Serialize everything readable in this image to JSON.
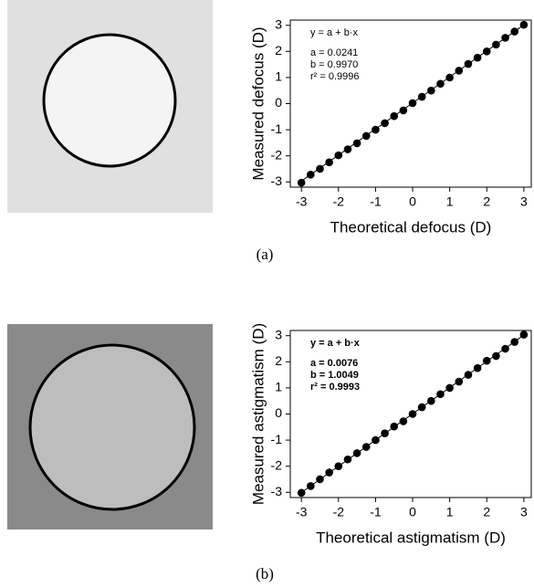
{
  "chart_data": [
    {
      "type": "scatter",
      "caption": "(a)",
      "xlabel": "Theoretical defocus (D)",
      "ylabel": "Measured defocus (D)",
      "x": [
        -3,
        -2.75,
        -2.5,
        -2.25,
        -2,
        -1.75,
        -1.5,
        -1.25,
        -1,
        -0.75,
        -0.5,
        -0.25,
        0,
        0.25,
        0.5,
        0.75,
        1,
        1.25,
        1.5,
        1.75,
        2,
        2.25,
        2.5,
        2.75,
        3
      ],
      "values": [
        -3.03,
        -2.72,
        -2.5,
        -2.25,
        -1.98,
        -1.75,
        -1.52,
        -1.24,
        -1,
        -0.75,
        -0.48,
        -0.26,
        0.02,
        0.26,
        0.5,
        0.76,
        1,
        1.26,
        1.52,
        1.76,
        2,
        2.26,
        2.52,
        2.76,
        3.02
      ],
      "color": "#000000",
      "xlim": [
        -3.3,
        3.2
      ],
      "ylim": [
        -3.2,
        3.2
      ],
      "xticks": [
        -3,
        -2,
        -1,
        0,
        1,
        2,
        3
      ],
      "yticks": [
        -3,
        -2,
        -1,
        0,
        1,
        2,
        3
      ],
      "fit": {
        "a": 0.0241,
        "b": 0.997
      },
      "annotation_bold": false,
      "annotations": [
        "y = a + b·x",
        "a = 0.0241",
        "b = 0.9970",
        "r² = 0.9996"
      ]
    },
    {
      "type": "scatter",
      "caption": "(b)",
      "xlabel": "Theoretical astigmatism (D)",
      "ylabel": "Measured astigmatism (D)",
      "x": [
        -3,
        -2.75,
        -2.5,
        -2.25,
        -2,
        -1.75,
        -1.5,
        -1.25,
        -1,
        -0.75,
        -0.5,
        -0.25,
        0,
        0.25,
        0.5,
        0.75,
        1,
        1.25,
        1.5,
        1.75,
        2,
        2.25,
        2.5,
        2.75,
        3
      ],
      "values": [
        -3.02,
        -2.76,
        -2.5,
        -2.24,
        -2,
        -1.74,
        -1.5,
        -1.26,
        -1,
        -0.74,
        -0.48,
        -0.28,
        0,
        0.26,
        0.5,
        0.76,
        1,
        1.24,
        1.5,
        1.76,
        2.04,
        2.22,
        2.5,
        2.76,
        3.04
      ],
      "color": "#000000",
      "xlim": [
        -3.3,
        3.2
      ],
      "ylim": [
        -3.2,
        3.2
      ],
      "xticks": [
        -3,
        -2,
        -1,
        0,
        1,
        2,
        3
      ],
      "yticks": [
        -3,
        -2,
        -1,
        0,
        1,
        2,
        3
      ],
      "fit": {
        "a": 0.0076,
        "b": 1.0049
      },
      "annotation_bold": true,
      "annotations": [
        "y = a + b·x",
        "a = 0.0076",
        "b = 1.0049",
        "r² = 0.9993"
      ]
    }
  ]
}
